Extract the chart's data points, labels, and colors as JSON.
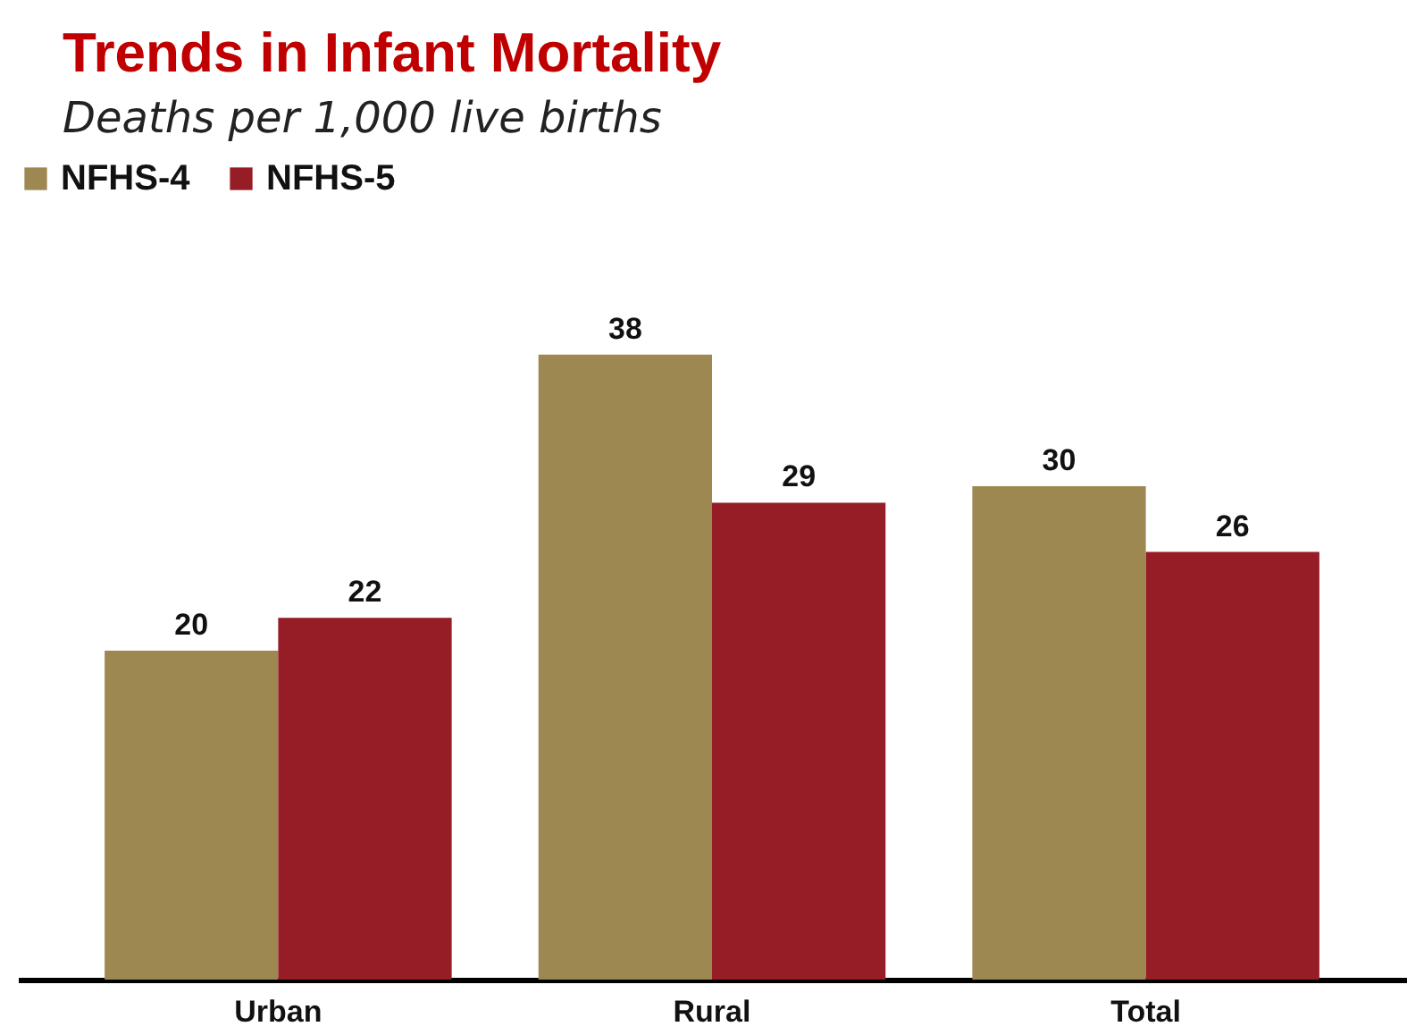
{
  "chart_data": {
    "type": "bar",
    "title": "Trends in Infant Mortality",
    "subtitle": "Deaths per 1,000 live births",
    "categories": [
      "Urban",
      "Rural",
      "Total"
    ],
    "series": [
      {
        "name": "NFHS-4",
        "color": "#9e8852",
        "values": [
          20,
          38,
          30
        ]
      },
      {
        "name": "NFHS-5",
        "color": "#961c26",
        "values": [
          22,
          29,
          26
        ]
      }
    ],
    "data_labels": true,
    "legend": "top",
    "grid": false
  }
}
